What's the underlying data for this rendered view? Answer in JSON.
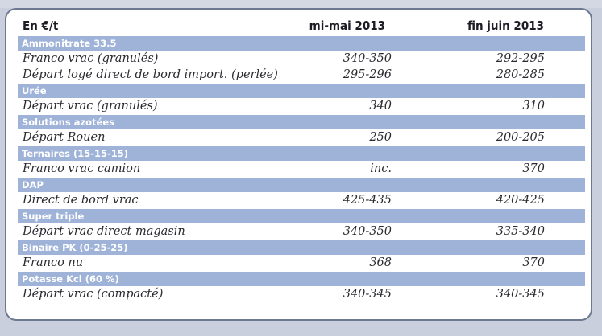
{
  "header": {
    "label": "En €/t",
    "col1": "mi-mai 2013",
    "col2": "fin juin 2013"
  },
  "groups": [
    {
      "category": "Ammonitrate 33.5",
      "items": [
        {
          "label": "Franco vrac (granulés)",
          "v1": "340-350",
          "v2": "292-295"
        },
        {
          "label": "Départ logé direct de bord import. (perlée)",
          "v1": "295-296",
          "v2": "280-285"
        }
      ]
    },
    {
      "category": "Urée",
      "items": [
        {
          "label": "Départ vrac (granulés)",
          "v1": "340",
          "v2": "310"
        }
      ]
    },
    {
      "category": "Solutions azotées",
      "items": [
        {
          "label": "Départ Rouen",
          "v1": "250",
          "v2": "200-205"
        }
      ]
    },
    {
      "category": "Ternaires (15-15-15)",
      "items": [
        {
          "label": "Franco vrac camion",
          "v1": "inc.",
          "v2": "370"
        }
      ]
    },
    {
      "category": "DAP",
      "items": [
        {
          "label": "Direct de bord vrac",
          "v1": "425-435",
          "v2": "420-425"
        }
      ]
    },
    {
      "category": "Super triple",
      "items": [
        {
          "label": "Départ vrac direct magasin",
          "v1": "340-350",
          "v2": "335-340"
        }
      ]
    },
    {
      "category": "Binaire PK (0-25-25)",
      "items": [
        {
          "label": "Franco nu",
          "v1": "368",
          "v2": "370"
        }
      ]
    },
    {
      "category": "Potasse Kcl (60 %)",
      "items": [
        {
          "label": "Départ vrac (compacté)",
          "v1": "340-345",
          "v2": "340-345"
        }
      ]
    }
  ]
}
